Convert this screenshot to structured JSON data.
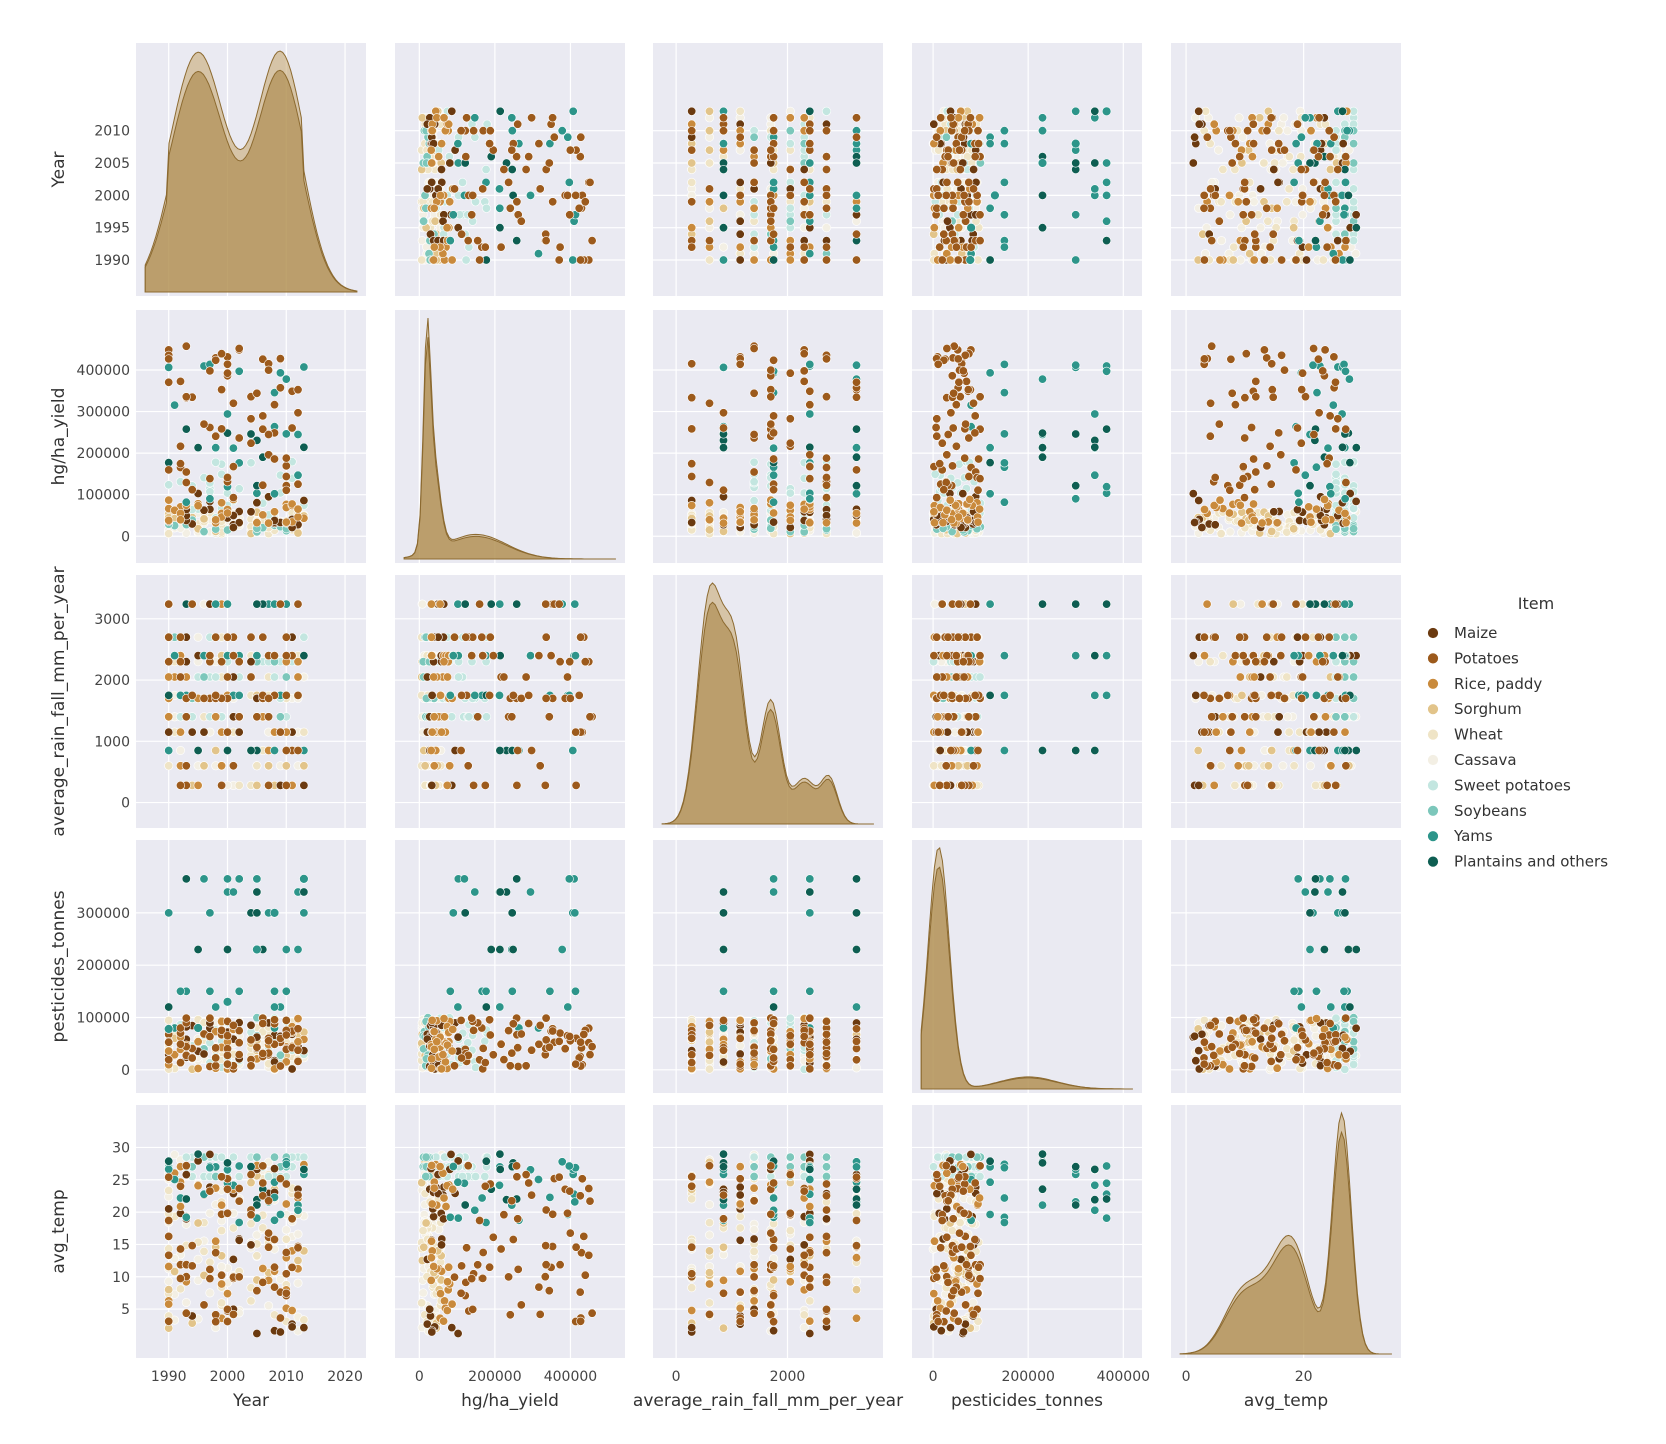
{
  "chart_data": {
    "type": "scatter",
    "subtype": "pairplot",
    "variables": [
      "Year",
      "hg/ha_yield",
      "average_rain_fall_mm_per_year",
      "pesticides_tonnes",
      "avg_temp"
    ],
    "axis_labels": [
      "Year",
      "hg/ha_yield",
      "average_rain_fall_mm_per_year",
      "pesticides_tonnes",
      "avg_temp"
    ],
    "ranges": [
      [
        1986,
        2022
      ],
      [
        -40000,
        520000
      ],
      [
        -250,
        3550
      ],
      [
        -25000,
        420000
      ],
      [
        -1,
        35
      ]
    ],
    "y_ticks": [
      [
        1990,
        1995,
        2000,
        2005,
        2010
      ],
      [
        0,
        100000,
        200000,
        300000,
        400000
      ],
      [
        0,
        1000,
        2000,
        3000
      ],
      [
        0,
        100000,
        200000,
        300000
      ],
      [
        5,
        10,
        15,
        20,
        25,
        30
      ]
    ],
    "x_ticks": [
      [
        1990,
        2000,
        2010,
        2020
      ],
      [
        0,
        200000,
        400000
      ],
      [
        0,
        2000
      ],
      [
        0,
        200000,
        400000
      ],
      [
        0,
        20
      ]
    ],
    "grid": true,
    "diagonal": "kde",
    "legend": {
      "title": "Item",
      "placement": "right",
      "entries": [
        {
          "label": "Maize",
          "color": "#6b3a10"
        },
        {
          "label": "Potatoes",
          "color": "#9c5a1c"
        },
        {
          "label": "Rice, paddy",
          "color": "#c98a3c"
        },
        {
          "label": "Sorghum",
          "color": "#e2c48a"
        },
        {
          "label": "Wheat",
          "color": "#efe4c6"
        },
        {
          "label": "Cassava",
          "color": "#f3efe4"
        },
        {
          "label": "Sweet potatoes",
          "color": "#c3e6e0"
        },
        {
          "label": "Soybeans",
          "color": "#7cc7bb"
        },
        {
          "label": "Yams",
          "color": "#2d958a"
        },
        {
          "label": "Plantains and others",
          "color": "#0e5e52"
        }
      ]
    },
    "years": [
      1990,
      1991,
      1992,
      1993,
      1994,
      1995,
      1996,
      1997,
      1998,
      1999,
      2000,
      2001,
      2002,
      2004,
      2005,
      2006,
      2007,
      2008,
      2009,
      2010,
      2011,
      2012,
      2013
    ],
    "pesticides_trend_sample": [
      {
        "Year": 1990,
        "pesticides_tonnes": 78000
      },
      {
        "Year": 1995,
        "pesticides_tonnes": 80000
      },
      {
        "Year": 2000,
        "pesticides_tonnes": 130000
      },
      {
        "Year": 2005,
        "pesticides_tonnes": 230000
      },
      {
        "Year": 2008,
        "pesticides_tonnes": 300000
      },
      {
        "Year": 2013,
        "pesticides_tonnes": 365000
      }
    ],
    "rainfall_levels": [
      280,
      600,
      850,
      1150,
      1400,
      1700,
      1750,
      2050,
      2300,
      2400,
      2700,
      3240
    ],
    "temp_bands": [
      13.5,
      25.5,
      27,
      28.5
    ],
    "kde_peaks": {
      "Year": [
        1995,
        2009
      ],
      "hg/ha_yield": [
        20000,
        120000
      ],
      "average_rain_fall_mm_per_year": [
        600,
        1000,
        1700,
        2700
      ],
      "pesticides_tonnes": [
        10000
      ],
      "avg_temp": [
        9,
        18,
        26
      ]
    }
  }
}
